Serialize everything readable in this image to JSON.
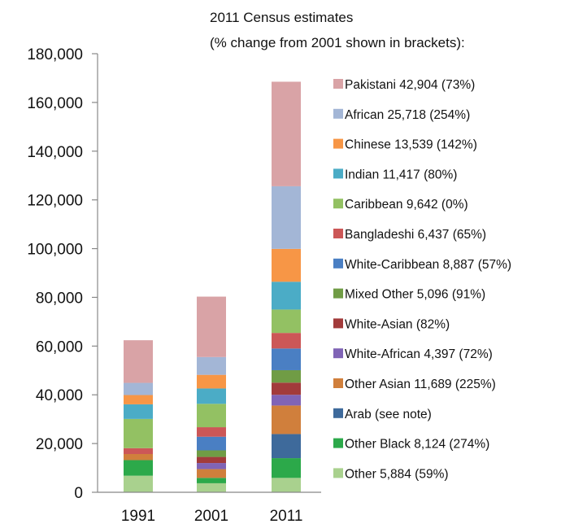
{
  "chart_data": {
    "type": "bar",
    "stacked": true,
    "title": "2011 Census estimates",
    "subtitle": "(% change from 2001 shown in brackets):",
    "xlabel": "",
    "ylabel": "",
    "categories": [
      "1991",
      "2001",
      "2011"
    ],
    "ylim": [
      0,
      180000
    ],
    "yticks": [
      0,
      20000,
      40000,
      60000,
      80000,
      100000,
      120000,
      140000,
      160000,
      180000
    ],
    "ytick_labels": [
      "0",
      "20,000",
      "40,000",
      "60,000",
      "80,000",
      "100,000",
      "120,000",
      "140,000",
      "160,000",
      "180,000"
    ],
    "grid": false,
    "legend_placement": "right",
    "series": [
      {
        "name": "Other 5,884 (59%)",
        "color": "#a9d18e",
        "values": [
          6800,
          3700,
          5900
        ]
      },
      {
        "name": "Other Black 8,124 (274%)",
        "color": "#2ca94a",
        "values": [
          6400,
          2200,
          8100
        ]
      },
      {
        "name": "Arab (see note)",
        "color": "#3e6a9b",
        "values": [
          0,
          0,
          9900
        ]
      },
      {
        "name": "Other Asian 11,689 (225%)",
        "color": "#d07f3c",
        "values": [
          2500,
          3600,
          11700
        ]
      },
      {
        "name": "White-African 4,397 (72%)",
        "color": "#8064b6",
        "values": [
          0,
          2500,
          4400
        ]
      },
      {
        "name": "White-Asian (82%)",
        "color": "#a23b3b",
        "values": [
          0,
          2500,
          5000
        ]
      },
      {
        "name": "Mixed Other 5,096 (91%)",
        "color": "#709c45",
        "values": [
          0,
          2700,
          5100
        ]
      },
      {
        "name": "White-Caribbean 8,887 (57%)",
        "color": "#4a7fc3",
        "values": [
          0,
          5600,
          8900
        ]
      },
      {
        "name": "Bangladeshi 6,437 (65%)",
        "color": "#cc5757",
        "values": [
          2400,
          3900,
          6400
        ]
      },
      {
        "name": "Caribbean 9,642 (0%)",
        "color": "#93c163",
        "values": [
          12000,
          9600,
          9600
        ]
      },
      {
        "name": "Indian 11,417 (80%)",
        "color": "#4bacc6",
        "values": [
          6000,
          6300,
          11400
        ]
      },
      {
        "name": "Chinese 13,539 (142%)",
        "color": "#f79646",
        "values": [
          3800,
          5600,
          13500
        ]
      },
      {
        "name": "African 25,718 (254%)",
        "color": "#a3b6d6",
        "values": [
          5000,
          7300,
          25700
        ]
      },
      {
        "name": "Pakistani 42,904 (73%)",
        "color": "#d9a3a6",
        "values": [
          17500,
          24800,
          42900
        ]
      }
    ]
  }
}
